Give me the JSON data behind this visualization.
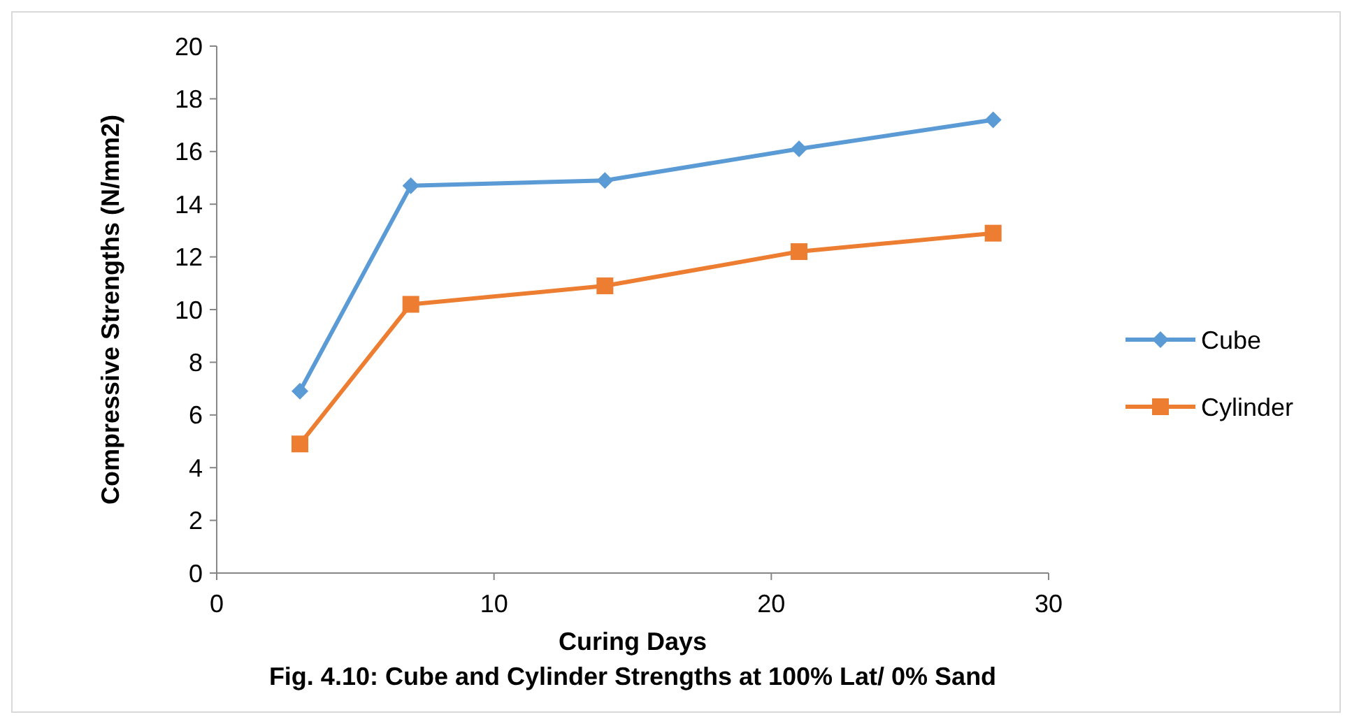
{
  "chart_data": {
    "type": "line",
    "xlabel": "Curing Days",
    "ylabel": "Compressive Strengths (N/mm2)",
    "annotations": [
      "Fig. 4.10: Cube and Cylinder Strengths at 100% Lat/ 0% Sand"
    ],
    "x": [
      3,
      7,
      14,
      21,
      28
    ],
    "series": [
      {
        "name": "Cube",
        "color": "#5b9bd5",
        "values": [
          6.9,
          14.7,
          14.9,
          16.1,
          17.2
        ],
        "marker": "diamond"
      },
      {
        "name": "Cylinder",
        "color": "#ed7d31",
        "values": [
          4.9,
          10.2,
          10.9,
          12.2,
          12.9
        ],
        "marker": "square"
      }
    ],
    "xlim": [
      0,
      30
    ],
    "xticks": [
      0,
      10,
      20,
      30
    ],
    "ylim": [
      0,
      20
    ],
    "yticks": [
      0,
      2,
      4,
      6,
      8,
      10,
      12,
      14,
      16,
      18,
      20
    ],
    "grid": false,
    "legend": "right",
    "line_style": "solid"
  }
}
